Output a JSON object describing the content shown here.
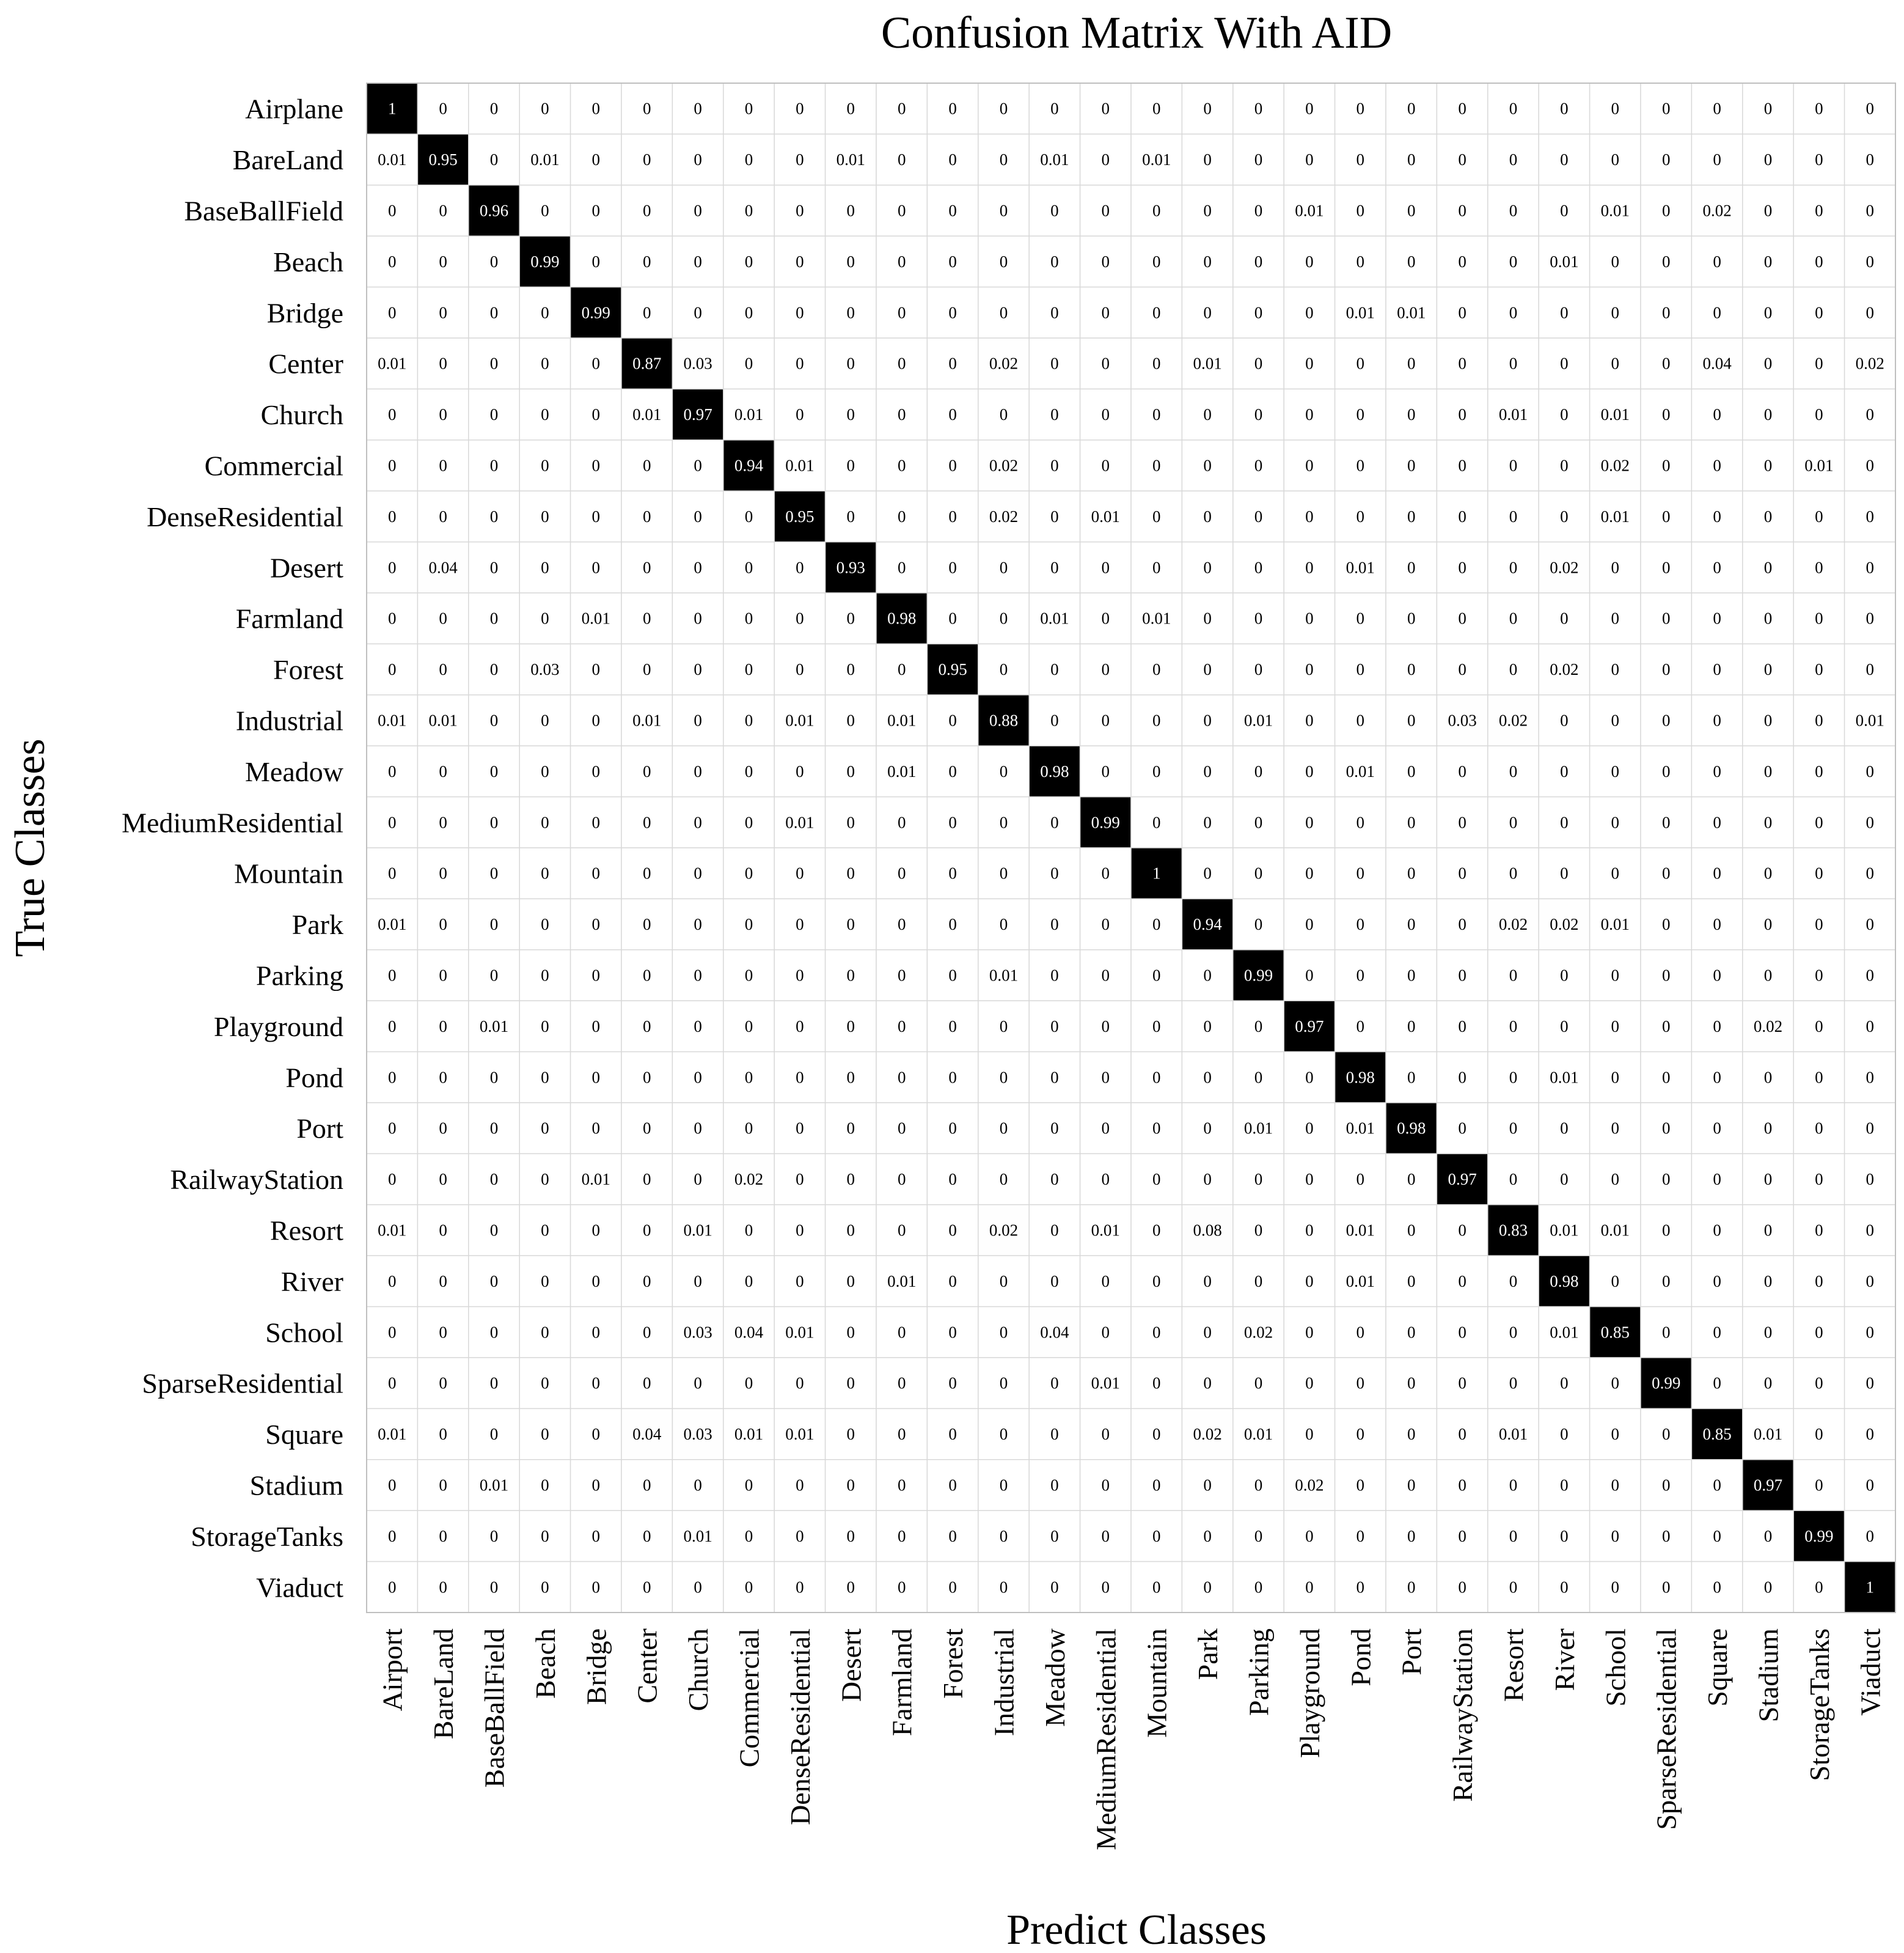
{
  "chart_data": {
    "type": "heatmap",
    "title": "Confusion Matrix With AID",
    "xlabel": "Predict Classes",
    "ylabel": "True Classes",
    "row_labels": [
      "Airplane",
      "BareLand",
      "BaseBallField",
      "Beach",
      "Bridge",
      "Center",
      "Church",
      "Commercial",
      "DenseResidential",
      "Desert",
      "Farmland",
      "Forest",
      "Industrial",
      "Meadow",
      "MediumResidential",
      "Mountain",
      "Park",
      "Parking",
      "Playground",
      "Pond",
      "Port",
      "RailwayStation",
      "Resort",
      "River",
      "School",
      "SparseResidential",
      "Square",
      "Stadium",
      "StorageTanks",
      "Viaduct"
    ],
    "col_labels": [
      "Airport",
      "BareLand",
      "BaseBallField",
      "Beach",
      "Bridge",
      "Center",
      "Church",
      "Commercial",
      "DenseResidential",
      "Desert",
      "Farmland",
      "Forest",
      "Industrial",
      "Meadow",
      "MediumResidential",
      "Mountain",
      "Park",
      "Parking",
      "Playground",
      "Pond",
      "Port",
      "RailwayStation",
      "Resort",
      "River",
      "School",
      "SparseResidential",
      "Square",
      "Stadium",
      "StorageTanks",
      "Viaduct"
    ],
    "matrix": [
      [
        "1",
        "0",
        "0",
        "0",
        "0",
        "0",
        "0",
        "0",
        "0",
        "0",
        "0",
        "0",
        "0",
        "0",
        "0",
        "0",
        "0",
        "0",
        "0",
        "0",
        "0",
        "0",
        "0",
        "0",
        "0",
        "0",
        "0",
        "0",
        "0",
        "0"
      ],
      [
        "0.01",
        "0.95",
        "0",
        "0.01",
        "0",
        "0",
        "0",
        "0",
        "0",
        "0.01",
        "0",
        "0",
        "0",
        "0.01",
        "0",
        "0.01",
        "0",
        "0",
        "0",
        "0",
        "0",
        "0",
        "0",
        "0",
        "0",
        "0",
        "0",
        "0",
        "0",
        "0"
      ],
      [
        "0",
        "0",
        "0.96",
        "0",
        "0",
        "0",
        "0",
        "0",
        "0",
        "0",
        "0",
        "0",
        "0",
        "0",
        "0",
        "0",
        "0",
        "0",
        "0.01",
        "0",
        "0",
        "0",
        "0",
        "0",
        "0.01",
        "0",
        "0.02",
        "0",
        "0",
        "0"
      ],
      [
        "0",
        "0",
        "0",
        "0.99",
        "0",
        "0",
        "0",
        "0",
        "0",
        "0",
        "0",
        "0",
        "0",
        "0",
        "0",
        "0",
        "0",
        "0",
        "0",
        "0",
        "0",
        "0",
        "0",
        "0.01",
        "0",
        "0",
        "0",
        "0",
        "0",
        "0"
      ],
      [
        "0",
        "0",
        "0",
        "0",
        "0.99",
        "0",
        "0",
        "0",
        "0",
        "0",
        "0",
        "0",
        "0",
        "0",
        "0",
        "0",
        "0",
        "0",
        "0",
        "0.01",
        "0.01",
        "0",
        "0",
        "0",
        "0",
        "0",
        "0",
        "0",
        "0",
        "0"
      ],
      [
        "0.01",
        "0",
        "0",
        "0",
        "0",
        "0.87",
        "0.03",
        "0",
        "0",
        "0",
        "0",
        "0",
        "0.02",
        "0",
        "0",
        "0",
        "0.01",
        "0",
        "0",
        "0",
        "0",
        "0",
        "0",
        "0",
        "0",
        "0",
        "0.04",
        "0",
        "0",
        "0.02"
      ],
      [
        "0",
        "0",
        "0",
        "0",
        "0",
        "0.01",
        "0.97",
        "0.01",
        "0",
        "0",
        "0",
        "0",
        "0",
        "0",
        "0",
        "0",
        "0",
        "0",
        "0",
        "0",
        "0",
        "0",
        "0.01",
        "0",
        "0.01",
        "0",
        "0",
        "0",
        "0",
        "0"
      ],
      [
        "0",
        "0",
        "0",
        "0",
        "0",
        "0",
        "0",
        "0.94",
        "0.01",
        "0",
        "0",
        "0",
        "0.02",
        "0",
        "0",
        "0",
        "0",
        "0",
        "0",
        "0",
        "0",
        "0",
        "0",
        "0",
        "0.02",
        "0",
        "0",
        "0",
        "0.01",
        "0"
      ],
      [
        "0",
        "0",
        "0",
        "0",
        "0",
        "0",
        "0",
        "0",
        "0.95",
        "0",
        "0",
        "0",
        "0.02",
        "0",
        "0.01",
        "0",
        "0",
        "0",
        "0",
        "0",
        "0",
        "0",
        "0",
        "0",
        "0.01",
        "0",
        "0",
        "0",
        "0",
        "0"
      ],
      [
        "0",
        "0.04",
        "0",
        "0",
        "0",
        "0",
        "0",
        "0",
        "0",
        "0.93",
        "0",
        "0",
        "0",
        "0",
        "0",
        "0",
        "0",
        "0",
        "0",
        "0.01",
        "0",
        "0",
        "0",
        "0.02",
        "0",
        "0",
        "0",
        "0",
        "0",
        "0"
      ],
      [
        "0",
        "0",
        "0",
        "0",
        "0.01",
        "0",
        "0",
        "0",
        "0",
        "0",
        "0.98",
        "0",
        "0",
        "0.01",
        "0",
        "0.01",
        "0",
        "0",
        "0",
        "0",
        "0",
        "0",
        "0",
        "0",
        "0",
        "0",
        "0",
        "0",
        "0",
        "0"
      ],
      [
        "0",
        "0",
        "0",
        "0.03",
        "0",
        "0",
        "0",
        "0",
        "0",
        "0",
        "0",
        "0.95",
        "0",
        "0",
        "0",
        "0",
        "0",
        "0",
        "0",
        "0",
        "0",
        "0",
        "0",
        "0.02",
        "0",
        "0",
        "0",
        "0",
        "0",
        "0"
      ],
      [
        "0.01",
        "0.01",
        "0",
        "0",
        "0",
        "0.01",
        "0",
        "0",
        "0.01",
        "0",
        "0.01",
        "0",
        "0.88",
        "0",
        "0",
        "0",
        "0",
        "0.01",
        "0",
        "0",
        "0",
        "0.03",
        "0.02",
        "0",
        "0",
        "0",
        "0",
        "0",
        "0",
        "0.01"
      ],
      [
        "0",
        "0",
        "0",
        "0",
        "0",
        "0",
        "0",
        "0",
        "0",
        "0",
        "0.01",
        "0",
        "0",
        "0.98",
        "0",
        "0",
        "0",
        "0",
        "0",
        "0.01",
        "0",
        "0",
        "0",
        "0",
        "0",
        "0",
        "0",
        "0",
        "0",
        "0"
      ],
      [
        "0",
        "0",
        "0",
        "0",
        "0",
        "0",
        "0",
        "0",
        "0.01",
        "0",
        "0",
        "0",
        "0",
        "0",
        "0.99",
        "0",
        "0",
        "0",
        "0",
        "0",
        "0",
        "0",
        "0",
        "0",
        "0",
        "0",
        "0",
        "0",
        "0",
        "0"
      ],
      [
        "0",
        "0",
        "0",
        "0",
        "0",
        "0",
        "0",
        "0",
        "0",
        "0",
        "0",
        "0",
        "0",
        "0",
        "0",
        "1",
        "0",
        "0",
        "0",
        "0",
        "0",
        "0",
        "0",
        "0",
        "0",
        "0",
        "0",
        "0",
        "0",
        "0"
      ],
      [
        "0.01",
        "0",
        "0",
        "0",
        "0",
        "0",
        "0",
        "0",
        "0",
        "0",
        "0",
        "0",
        "0",
        "0",
        "0",
        "0",
        "0.94",
        "0",
        "0",
        "0",
        "0",
        "0",
        "0.02",
        "0.02",
        "0.01",
        "0",
        "0",
        "0",
        "0",
        "0"
      ],
      [
        "0",
        "0",
        "0",
        "0",
        "0",
        "0",
        "0",
        "0",
        "0",
        "0",
        "0",
        "0",
        "0.01",
        "0",
        "0",
        "0",
        "0",
        "0.99",
        "0",
        "0",
        "0",
        "0",
        "0",
        "0",
        "0",
        "0",
        "0",
        "0",
        "0",
        "0"
      ],
      [
        "0",
        "0",
        "0.01",
        "0",
        "0",
        "0",
        "0",
        "0",
        "0",
        "0",
        "0",
        "0",
        "0",
        "0",
        "0",
        "0",
        "0",
        "0",
        "0.97",
        "0",
        "0",
        "0",
        "0",
        "0",
        "0",
        "0",
        "0",
        "0.02",
        "0",
        "0"
      ],
      [
        "0",
        "0",
        "0",
        "0",
        "0",
        "0",
        "0",
        "0",
        "0",
        "0",
        "0",
        "0",
        "0",
        "0",
        "0",
        "0",
        "0",
        "0",
        "0",
        "0.98",
        "0",
        "0",
        "0",
        "0.01",
        "0",
        "0",
        "0",
        "0",
        "0",
        "0"
      ],
      [
        "0",
        "0",
        "0",
        "0",
        "0",
        "0",
        "0",
        "0",
        "0",
        "0",
        "0",
        "0",
        "0",
        "0",
        "0",
        "0",
        "0",
        "0.01",
        "0",
        "0.01",
        "0.98",
        "0",
        "0",
        "0",
        "0",
        "0",
        "0",
        "0",
        "0",
        "0"
      ],
      [
        "0",
        "0",
        "0",
        "0",
        "0.01",
        "0",
        "0",
        "0.02",
        "0",
        "0",
        "0",
        "0",
        "0",
        "0",
        "0",
        "0",
        "0",
        "0",
        "0",
        "0",
        "0",
        "0.97",
        "0",
        "0",
        "0",
        "0",
        "0",
        "0",
        "0",
        "0"
      ],
      [
        "0.01",
        "0",
        "0",
        "0",
        "0",
        "0",
        "0.01",
        "0",
        "0",
        "0",
        "0",
        "0",
        "0.02",
        "0",
        "0.01",
        "0",
        "0.08",
        "0",
        "0",
        "0.01",
        "0",
        "0",
        "0.83",
        "0.01",
        "0.01",
        "0",
        "0",
        "0",
        "0",
        "0"
      ],
      [
        "0",
        "0",
        "0",
        "0",
        "0",
        "0",
        "0",
        "0",
        "0",
        "0",
        "0.01",
        "0",
        "0",
        "0",
        "0",
        "0",
        "0",
        "0",
        "0",
        "0.01",
        "0",
        "0",
        "0",
        "0.98",
        "0",
        "0",
        "0",
        "0",
        "0",
        "0"
      ],
      [
        "0",
        "0",
        "0",
        "0",
        "0",
        "0",
        "0.03",
        "0.04",
        "0.01",
        "0",
        "0",
        "0",
        "0",
        "0.04",
        "0",
        "0",
        "0",
        "0.02",
        "0",
        "0",
        "0",
        "0",
        "0",
        "0.01",
        "0.85",
        "0",
        "0",
        "0",
        "0",
        "0"
      ],
      [
        "0",
        "0",
        "0",
        "0",
        "0",
        "0",
        "0",
        "0",
        "0",
        "0",
        "0",
        "0",
        "0",
        "0",
        "0.01",
        "0",
        "0",
        "0",
        "0",
        "0",
        "0",
        "0",
        "0",
        "0",
        "0",
        "0.99",
        "0",
        "0",
        "0",
        "0"
      ],
      [
        "0.01",
        "0",
        "0",
        "0",
        "0",
        "0.04",
        "0.03",
        "0.01",
        "0.01",
        "0",
        "0",
        "0",
        "0",
        "0",
        "0",
        "0",
        "0.02",
        "0.01",
        "0",
        "0",
        "0",
        "0",
        "0.01",
        "0",
        "0",
        "0",
        "0.85",
        "0.01",
        "0",
        "0"
      ],
      [
        "0",
        "0",
        "0.01",
        "0",
        "0",
        "0",
        "0",
        "0",
        "0",
        "0",
        "0",
        "0",
        "0",
        "0",
        "0",
        "0",
        "0",
        "0",
        "0.02",
        "0",
        "0",
        "0",
        "0",
        "0",
        "0",
        "0",
        "0",
        "0.97",
        "0",
        "0"
      ],
      [
        "0",
        "0",
        "0",
        "0",
        "0",
        "0",
        "0.01",
        "0",
        "0",
        "0",
        "0",
        "0",
        "0",
        "0",
        "0",
        "0",
        "0",
        "0",
        "0",
        "0",
        "0",
        "0",
        "0",
        "0",
        "0",
        "0",
        "0",
        "0",
        "0.99",
        "0"
      ],
      [
        "0",
        "0",
        "0",
        "0",
        "0",
        "0",
        "0",
        "0",
        "0",
        "0",
        "0",
        "0",
        "0",
        "0",
        "0",
        "0",
        "0",
        "0",
        "0",
        "0",
        "0",
        "0",
        "0",
        "0",
        "0",
        "0",
        "0",
        "0",
        "0",
        "1"
      ]
    ],
    "colors": {
      "high": "#000000",
      "low": "#ffffff",
      "grid": "#d9d9d9",
      "text_dark": "#000000",
      "text_light": "#ffffff"
    },
    "grid": true
  }
}
